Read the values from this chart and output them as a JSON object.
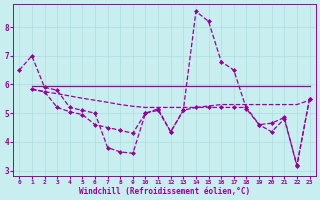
{
  "xlabel": "Windchill (Refroidissement éolien,°C)",
  "bg_color": "#c8eef0",
  "line_color": "#990099",
  "grid_color": "#aadddd",
  "xlim": [
    -0.5,
    23.5
  ],
  "ylim": [
    2.8,
    8.8
  ],
  "xticks": [
    0,
    1,
    2,
    3,
    4,
    5,
    6,
    7,
    8,
    9,
    10,
    11,
    12,
    13,
    14,
    15,
    16,
    17,
    18,
    19,
    20,
    21,
    22,
    23
  ],
  "yticks": [
    3,
    4,
    5,
    6,
    7,
    8
  ],
  "line1_x": [
    0,
    1,
    2,
    3,
    4,
    5,
    6,
    7,
    8,
    9,
    10,
    11,
    12,
    13,
    14,
    15,
    16,
    17,
    18,
    19,
    20,
    21,
    22,
    23
  ],
  "line1_y": [
    6.5,
    7.0,
    5.9,
    5.8,
    5.2,
    5.1,
    5.0,
    3.8,
    3.65,
    3.6,
    5.0,
    5.1,
    4.35,
    5.1,
    8.55,
    8.2,
    6.8,
    6.5,
    5.15,
    4.6,
    4.65,
    4.85,
    3.15,
    5.5
  ],
  "line2_x": [
    1,
    2,
    3,
    4,
    5,
    6,
    7,
    8,
    9,
    10,
    11,
    12,
    13,
    14,
    15,
    16,
    17,
    18,
    19,
    20,
    21,
    22,
    23
  ],
  "line2_y": [
    5.95,
    5.95,
    5.95,
    5.95,
    5.95,
    5.95,
    5.95,
    5.95,
    5.95,
    5.95,
    5.95,
    5.95,
    5.95,
    5.95,
    5.95,
    5.95,
    5.95,
    5.95,
    5.95,
    5.95,
    5.95,
    5.95,
    5.95
  ],
  "line3_x": [
    1,
    2,
    3,
    4,
    5,
    6,
    7,
    8,
    9,
    10,
    11,
    12,
    13,
    14,
    15,
    16,
    17,
    18,
    19,
    20,
    21,
    22,
    23
  ],
  "line3_y": [
    5.82,
    5.75,
    5.68,
    5.6,
    5.52,
    5.45,
    5.38,
    5.3,
    5.24,
    5.2,
    5.2,
    5.2,
    5.2,
    5.2,
    5.25,
    5.3,
    5.3,
    5.3,
    5.3,
    5.3,
    5.3,
    5.3,
    5.45
  ],
  "line4_x": [
    1,
    2,
    3,
    4,
    5,
    6,
    7,
    8,
    9,
    10,
    11,
    12,
    13,
    14,
    15,
    16,
    17,
    18,
    19,
    20,
    21,
    22,
    23
  ],
  "line4_y": [
    5.85,
    5.75,
    5.2,
    5.05,
    4.95,
    4.6,
    4.5,
    4.4,
    4.3,
    5.0,
    5.15,
    4.35,
    5.1,
    5.2,
    5.2,
    5.2,
    5.2,
    5.2,
    4.6,
    4.35,
    4.8,
    3.2,
    5.5
  ]
}
